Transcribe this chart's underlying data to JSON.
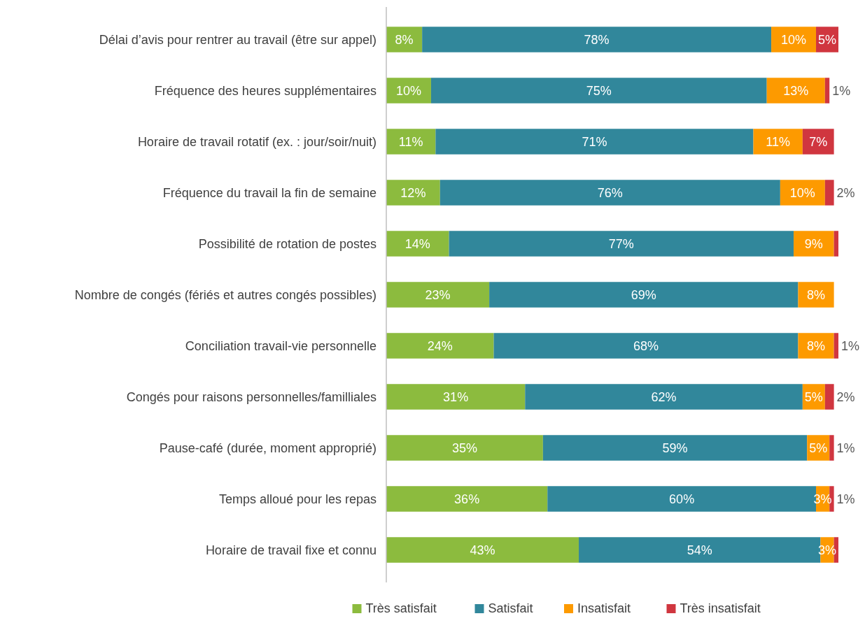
{
  "chart_data": {
    "type": "bar",
    "orientation": "horizontal",
    "stacked": true,
    "tick_labels": "y",
    "legend": "bottom",
    "categories": [
      "Délai d’avis pour rentrer au travail (être sur appel)",
      "Fréquence des heures supplémentaires",
      "Horaire de travail rotatif (ex. : jour/soir/nuit)",
      "Fréquence du travail la fin de semaine",
      "Possibilité de rotation de postes",
      "Nombre de congés (fériés et autres congés possibles)",
      "Conciliation travail-vie personnelle",
      "Congés pour raisons personnelles/familliales",
      "Pause-café (durée, moment approprié)",
      "Temps alloué pour les repas",
      "Horaire de travail fixe et connu"
    ],
    "series": [
      {
        "name": "Très satisfait",
        "color": "#8cbb3e",
        "values": [
          8,
          10,
          11,
          12,
          14,
          23,
          24,
          31,
          35,
          36,
          43
        ],
        "value_labels": [
          "8%",
          "10%",
          "11%",
          "12%",
          "14%",
          "23%",
          "24%",
          "31%",
          "35%",
          "36%",
          "43%"
        ]
      },
      {
        "name": "Satisfait",
        "color": "#31879b",
        "values": [
          78,
          75,
          71,
          76,
          77,
          69,
          68,
          62,
          59,
          60,
          54
        ],
        "value_labels": [
          "78%",
          "75%",
          "71%",
          "76%",
          "77%",
          "69%",
          "68%",
          "62%",
          "59%",
          "60%",
          "54%"
        ]
      },
      {
        "name": "Insatisfait",
        "color": "#fd9a00",
        "values": [
          10,
          13,
          11,
          10,
          9,
          8,
          8,
          5,
          5,
          3,
          3
        ],
        "value_labels": [
          "10%",
          "13%",
          "11%",
          "10%",
          "9%",
          "8%",
          "8%",
          "5%",
          "5%",
          "3%",
          "3%"
        ]
      },
      {
        "name": "Très insatisfait",
        "color": "#d0363f",
        "values": [
          5,
          1,
          7,
          2,
          1,
          0,
          1,
          2,
          1,
          1,
          1
        ],
        "value_labels": [
          "5%",
          "1%",
          "7%",
          "2%",
          null,
          null,
          "1%",
          "2%",
          "1%",
          "1%",
          null
        ]
      }
    ]
  }
}
